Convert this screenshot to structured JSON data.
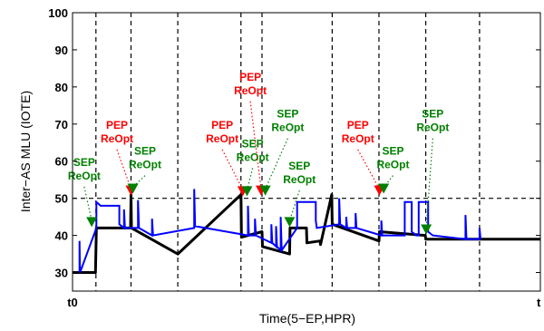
{
  "chart_data": {
    "type": "line",
    "xlabel": "Time(5−EP,HPR)",
    "ylabel": "Inter−AS MLU (IOTE)",
    "xtick_labels": [
      {
        "label": "t0",
        "pos": 0
      },
      {
        "label": "t",
        "pos": 100
      }
    ],
    "yticks": [
      30,
      40,
      50,
      60,
      70,
      80,
      90,
      100
    ],
    "xlim": [
      0,
      100
    ],
    "ylim": [
      25,
      100
    ],
    "grid": false,
    "colors": {
      "mlu_line": "#000000",
      "spikes": "#0000ff",
      "pep": "#ff0000",
      "sep": "#008000",
      "reference_lines": "#000000"
    },
    "threshold": 50,
    "vertical_markers": [
      5,
      12.5,
      22.5,
      36,
      40.5,
      55.5,
      65.5,
      75.5,
      87
    ],
    "series": [
      {
        "style": "thick-black",
        "points": [
          [
            0,
            30
          ],
          [
            4.9,
            30
          ],
          [
            5.1,
            42
          ],
          [
            12.4,
            42
          ],
          [
            12.5,
            51
          ],
          [
            12.6,
            42
          ],
          [
            22.5,
            35
          ],
          [
            36,
            51
          ],
          [
            36.1,
            39.5
          ],
          [
            40.5,
            41
          ],
          [
            40.6,
            37
          ],
          [
            46.4,
            35
          ],
          [
            46.5,
            42
          ],
          [
            50,
            42
          ],
          [
            50.1,
            38
          ],
          [
            52.9,
            38.5
          ],
          [
            53,
            37.5
          ],
          [
            55.4,
            51
          ],
          [
            55.5,
            43
          ],
          [
            65.5,
            38.5
          ],
          [
            65.6,
            41
          ],
          [
            75.4,
            40
          ],
          [
            75.5,
            39
          ],
          [
            87,
            39
          ],
          [
            100,
            39
          ]
        ]
      },
      {
        "style": "blue-steps",
        "points": [
          [
            1.5,
            30
          ],
          [
            1.5,
            38.5
          ],
          [
            1.6,
            30
          ],
          [
            5.1,
            42
          ],
          [
            5.1,
            49
          ],
          [
            6,
            48
          ],
          [
            10,
            48
          ],
          [
            10,
            43
          ],
          [
            11,
            42
          ],
          [
            11,
            47
          ],
          [
            11.2,
            42
          ],
          [
            14,
            42
          ],
          [
            14,
            49.5
          ],
          [
            14.2,
            42
          ],
          [
            17,
            40
          ],
          [
            17,
            44.5
          ],
          [
            17.2,
            40
          ],
          [
            26,
            42
          ],
          [
            26,
            52.5
          ],
          [
            26.2,
            42.5
          ],
          [
            37.5,
            40
          ],
          [
            37.5,
            48
          ],
          [
            37.7,
            40
          ],
          [
            39,
            40
          ],
          [
            39,
            44.5
          ],
          [
            39.2,
            40
          ],
          [
            42.5,
            38
          ],
          [
            42.5,
            43
          ],
          [
            42.7,
            38
          ],
          [
            43.5,
            37
          ],
          [
            43.5,
            42.5
          ],
          [
            43.7,
            37
          ],
          [
            44.5,
            36
          ],
          [
            44.5,
            45
          ],
          [
            44.7,
            36
          ],
          [
            48,
            42
          ],
          [
            48,
            49
          ],
          [
            52,
            49
          ],
          [
            52,
            44
          ],
          [
            52.2,
            42
          ],
          [
            57,
            43
          ],
          [
            57,
            50
          ],
          [
            57.2,
            43
          ],
          [
            58.5,
            42
          ],
          [
            58.5,
            45
          ],
          [
            58.7,
            42
          ],
          [
            60.5,
            42
          ],
          [
            60.5,
            46
          ],
          [
            60.7,
            42
          ],
          [
            66,
            40
          ],
          [
            66,
            44
          ],
          [
            66.2,
            40
          ],
          [
            71,
            40
          ],
          [
            71,
            49
          ],
          [
            72.5,
            49
          ],
          [
            72.5,
            41
          ],
          [
            73.5,
            40
          ],
          [
            74,
            40
          ],
          [
            74,
            49
          ],
          [
            76,
            49
          ],
          [
            76,
            41
          ],
          [
            77,
            40
          ],
          [
            84,
            39
          ],
          [
            84,
            45.5
          ],
          [
            84.2,
            39
          ],
          [
            87,
            39
          ],
          [
            87,
            42
          ],
          [
            87.2,
            39
          ]
        ]
      }
    ],
    "annotations": [
      {
        "lines": [
          "SEP",
          "ReOpt"
        ],
        "color": "sep",
        "text_at": [
          2.5,
          58
        ],
        "arrow_to": [
          4.1,
          42.5
        ]
      },
      {
        "lines": [
          "PEP",
          "ReOpt"
        ],
        "color": "pep",
        "text_at": [
          9.5,
          68
        ],
        "arrow_to": [
          12.5,
          51
        ]
      },
      {
        "lines": [
          "SEP",
          "ReOpt"
        ],
        "color": "sep",
        "text_at": [
          15.5,
          61
        ],
        "arrow_to": [
          12.9,
          51.5
        ]
      },
      {
        "lines": [
          "PEP",
          "ReOpt"
        ],
        "color": "pep",
        "text_at": [
          32,
          68
        ],
        "arrow_to": [
          36.4,
          50.8
        ]
      },
      {
        "lines": [
          "SEP",
          "ReOpt"
        ],
        "color": "sep",
        "text_at": [
          38.5,
          63
        ],
        "arrow_to": [
          37.3,
          50.8
        ]
      },
      {
        "lines": [
          "PEP",
          "ReOpt"
        ],
        "color": "pep",
        "text_at": [
          38,
          81
        ],
        "arrow_to": [
          40.3,
          51
        ]
      },
      {
        "lines": [
          "SEP",
          "ReOpt"
        ],
        "color": "sep",
        "text_at": [
          46,
          71
        ],
        "arrow_to": [
          41.2,
          51
        ]
      },
      {
        "lines": [
          "SEP",
          "ReOpt"
        ],
        "color": "sep",
        "text_at": [
          48.5,
          57
        ],
        "arrow_to": [
          46.4,
          42.5
        ]
      },
      {
        "lines": [
          "PEP",
          "ReOpt"
        ],
        "color": "pep",
        "text_at": [
          61,
          68
        ],
        "arrow_to": [
          65.6,
          51
        ]
      },
      {
        "lines": [
          "SEP",
          "ReOpt"
        ],
        "color": "sep",
        "text_at": [
          68.5,
          61
        ],
        "arrow_to": [
          66.5,
          51.5
        ]
      },
      {
        "lines": [
          "SEP",
          "ReOpt"
        ],
        "color": "sep",
        "text_at": [
          77,
          71
        ],
        "arrow_to": [
          75.6,
          40.5
        ]
      }
    ]
  }
}
